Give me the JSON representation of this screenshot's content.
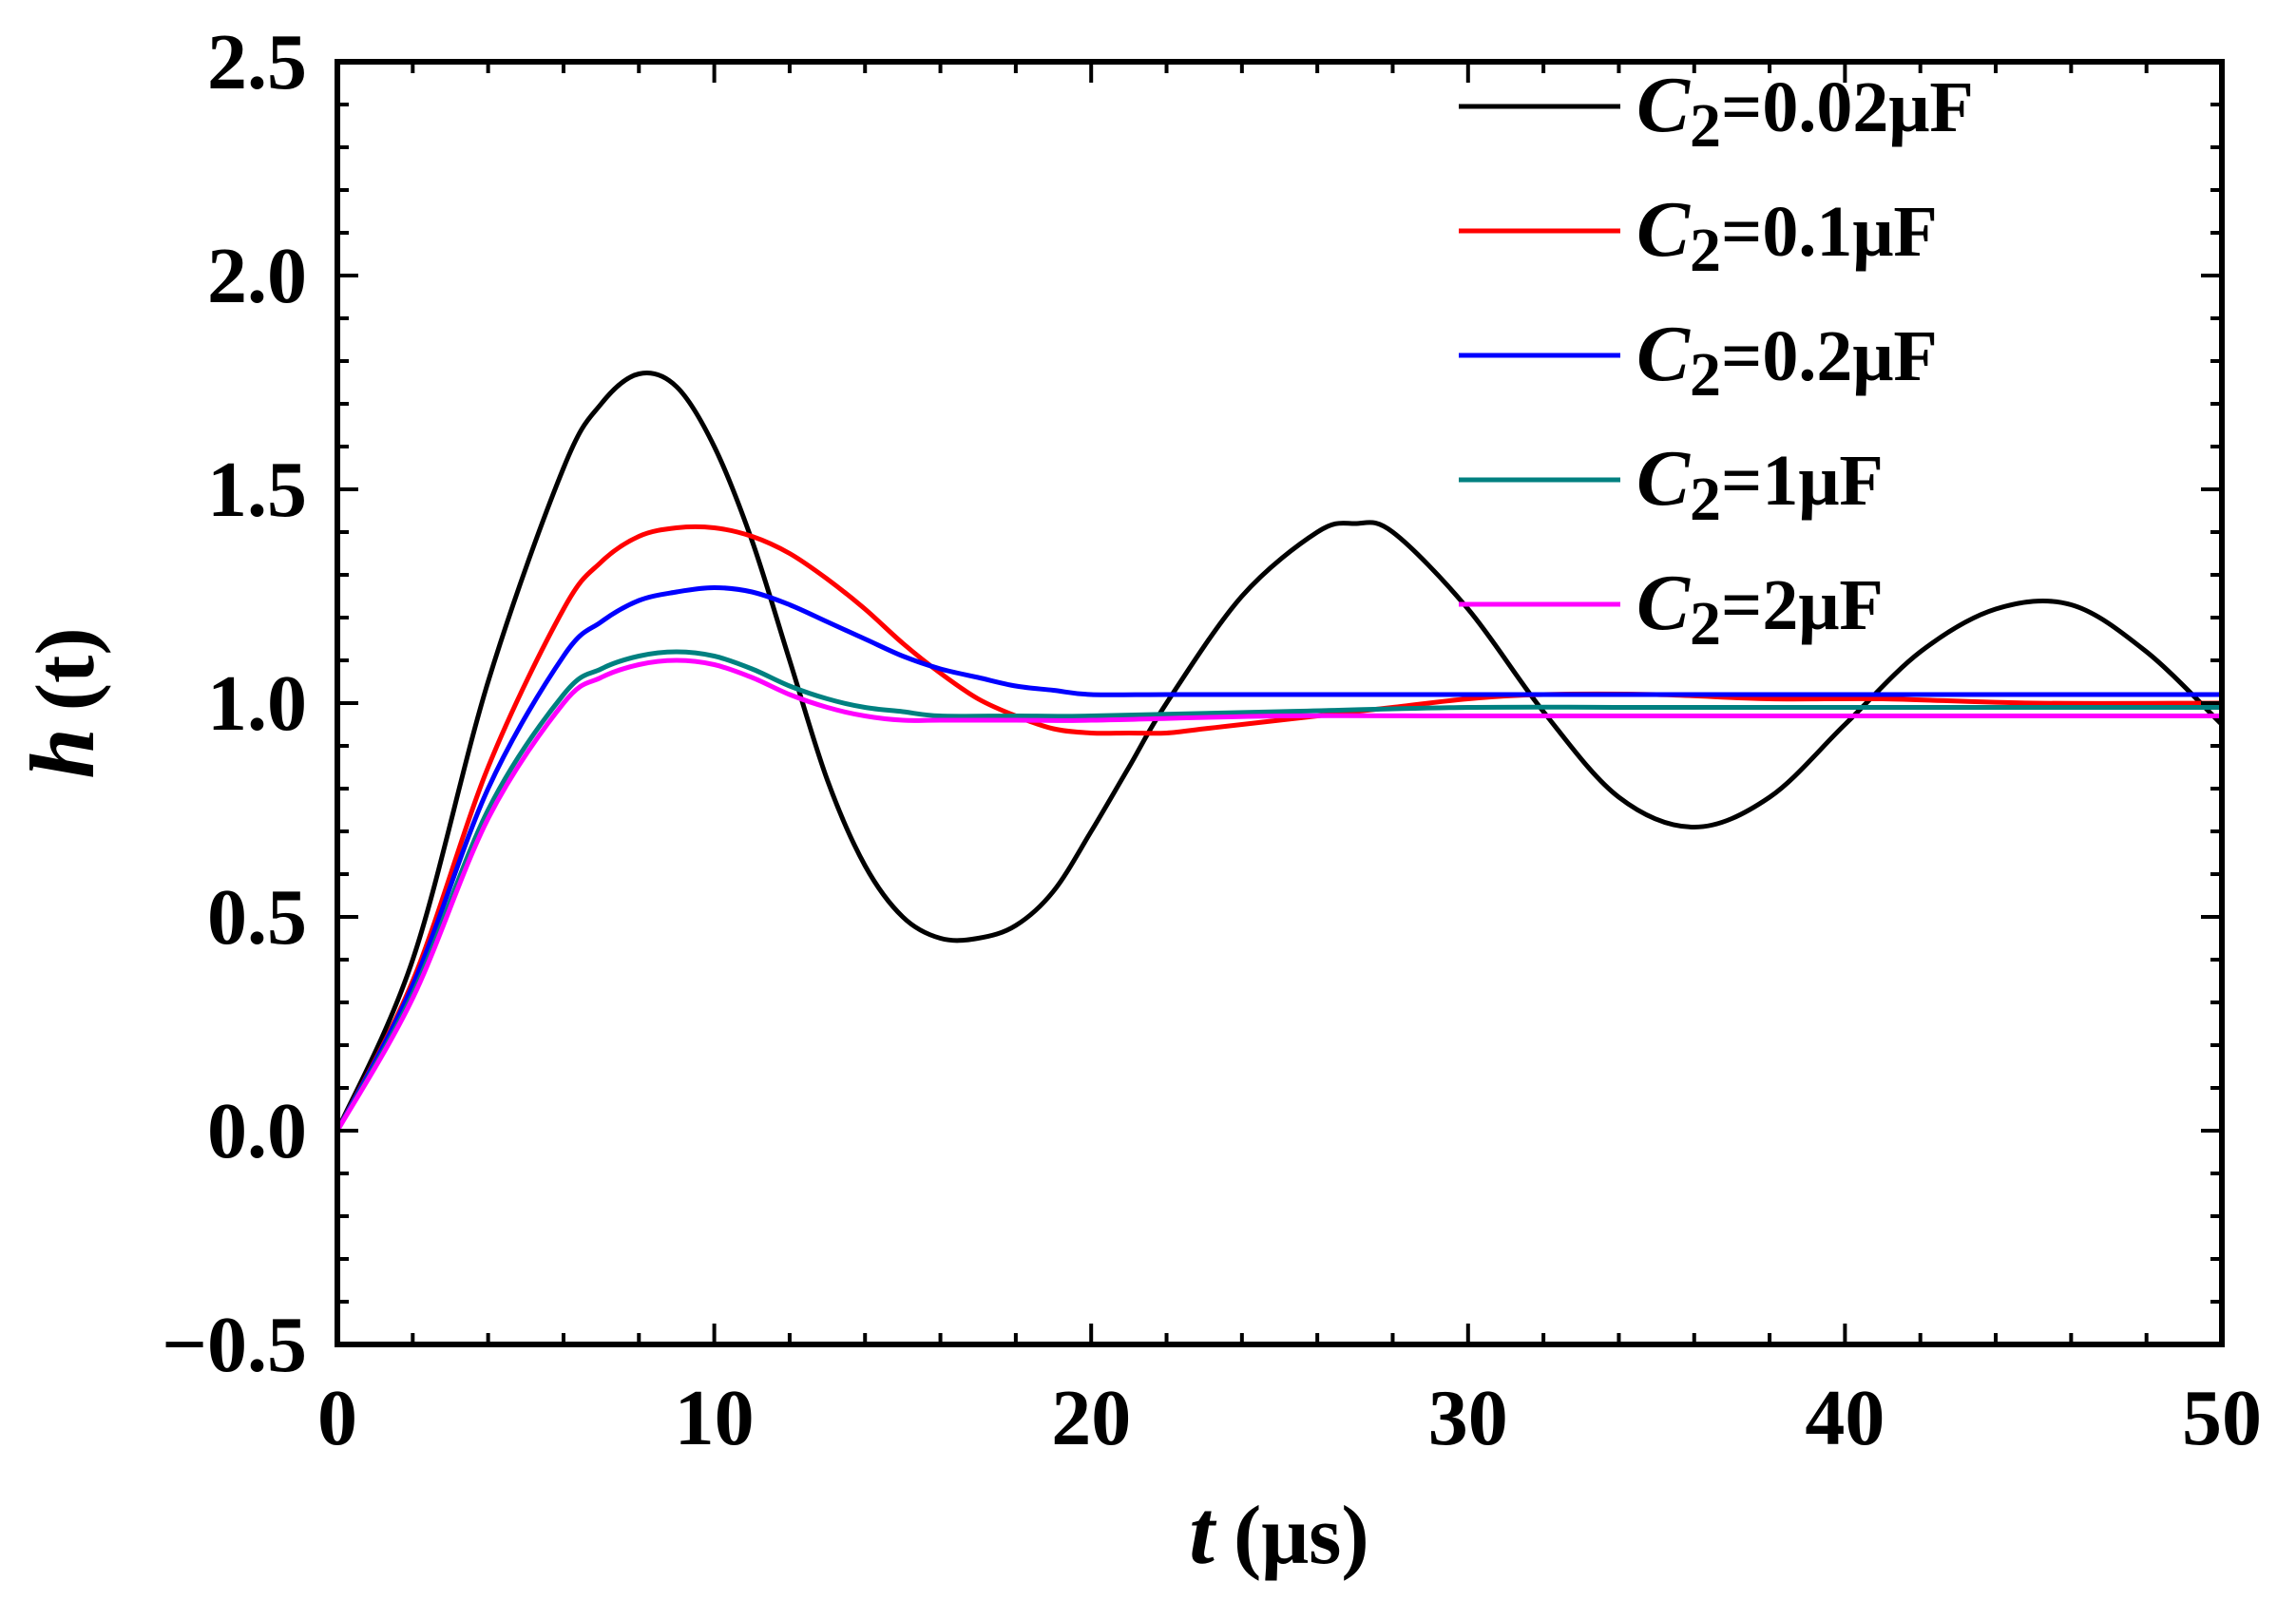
{
  "chart_data": {
    "type": "line",
    "title": "",
    "xlabel": {
      "var": "t",
      "unit": "(μs)"
    },
    "ylabel": {
      "var": "h",
      "rest": "(t)"
    },
    "xlim": [
      0,
      50
    ],
    "ylim": [
      -0.5,
      2.5
    ],
    "xticks": [
      0,
      10,
      20,
      30,
      40,
      50
    ],
    "xtick_labels": [
      "0",
      "10",
      "20",
      "30",
      "40",
      "50"
    ],
    "yticks": [
      -0.5,
      0.0,
      0.5,
      1.0,
      1.5,
      2.0,
      2.5
    ],
    "ytick_labels": [
      "−0.5",
      "0.0",
      "0.5",
      "1.0",
      "1.5",
      "2.0",
      "2.5"
    ],
    "grid": false,
    "legend_position": "top-right",
    "series": [
      {
        "name": "C2=0.02μF",
        "label_var": "C",
        "label_sub": "2",
        "label_rest": "=0.02μF",
        "color": "#000000",
        "x": [
          0,
          2,
          4,
          6,
          7,
          8,
          9,
          10,
          11,
          12,
          13,
          14,
          15,
          16,
          17,
          18,
          19,
          20,
          21,
          22,
          24,
          26,
          27,
          28,
          30,
          32,
          34,
          36,
          38,
          40,
          42,
          44,
          46,
          48,
          50
        ],
        "y": [
          0.0,
          0.4,
          1.05,
          1.55,
          1.7,
          1.77,
          1.74,
          1.6,
          1.38,
          1.1,
          0.82,
          0.62,
          0.5,
          0.45,
          0.45,
          0.48,
          0.56,
          0.7,
          0.85,
          1.0,
          1.25,
          1.4,
          1.42,
          1.4,
          1.22,
          0.98,
          0.78,
          0.71,
          0.78,
          0.95,
          1.12,
          1.22,
          1.23,
          1.12,
          0.95
        ]
      },
      {
        "name": "C2=0.1μF",
        "label_var": "C",
        "label_sub": "2",
        "label_rest": "=0.1μF",
        "color": "#ff0000",
        "x": [
          0,
          2,
          4,
          6,
          7,
          8,
          9,
          10,
          11,
          12,
          13,
          14,
          15,
          16,
          17,
          18,
          19,
          20,
          21,
          22,
          23,
          24,
          26,
          28,
          30,
          32,
          35,
          38,
          41,
          45,
          50
        ],
        "y": [
          0.0,
          0.35,
          0.85,
          1.22,
          1.33,
          1.39,
          1.41,
          1.41,
          1.39,
          1.35,
          1.29,
          1.22,
          1.14,
          1.07,
          1.01,
          0.97,
          0.94,
          0.93,
          0.93,
          0.93,
          0.94,
          0.95,
          0.97,
          0.99,
          1.01,
          1.02,
          1.02,
          1.01,
          1.01,
          1.0,
          1.0
        ]
      },
      {
        "name": "C2=0.2μF",
        "label_var": "C",
        "label_sub": "2",
        "label_rest": "=0.2μF",
        "color": "#0000ff",
        "x": [
          0,
          2,
          4,
          6,
          7,
          8,
          9,
          10,
          11,
          12,
          13,
          14,
          15,
          16,
          17,
          18,
          19,
          20,
          22,
          25,
          30,
          35,
          40,
          45,
          50
        ],
        "y": [
          0.0,
          0.34,
          0.8,
          1.11,
          1.19,
          1.24,
          1.26,
          1.27,
          1.26,
          1.23,
          1.19,
          1.15,
          1.11,
          1.08,
          1.06,
          1.04,
          1.03,
          1.02,
          1.02,
          1.02,
          1.02,
          1.02,
          1.02,
          1.02,
          1.02
        ]
      },
      {
        "name": "C2=1μF",
        "label_var": "C",
        "label_sub": "2",
        "label_rest": "=1μF",
        "color": "#008080",
        "x": [
          0,
          2,
          4,
          6,
          7,
          8,
          9,
          10,
          11,
          12,
          13,
          14,
          15,
          16,
          18,
          20,
          25,
          30,
          35,
          40,
          45,
          50
        ],
        "y": [
          0.0,
          0.32,
          0.75,
          1.02,
          1.08,
          1.11,
          1.12,
          1.11,
          1.08,
          1.04,
          1.01,
          0.99,
          0.98,
          0.97,
          0.97,
          0.97,
          0.98,
          0.99,
          0.99,
          0.99,
          0.99,
          0.99
        ]
      },
      {
        "name": "C2=2μF",
        "label_var": "C",
        "label_sub": "2",
        "label_rest": "=2μF",
        "color": "#ff00ff",
        "x": [
          0,
          2,
          4,
          6,
          7,
          8,
          9,
          10,
          11,
          12,
          13,
          14,
          15,
          16,
          18,
          20,
          25,
          30,
          35,
          40,
          45,
          50
        ],
        "y": [
          0.0,
          0.31,
          0.73,
          1.0,
          1.06,
          1.09,
          1.1,
          1.09,
          1.06,
          1.02,
          0.99,
          0.97,
          0.96,
          0.96,
          0.96,
          0.96,
          0.97,
          0.97,
          0.97,
          0.97,
          0.97,
          0.97
        ]
      }
    ]
  }
}
